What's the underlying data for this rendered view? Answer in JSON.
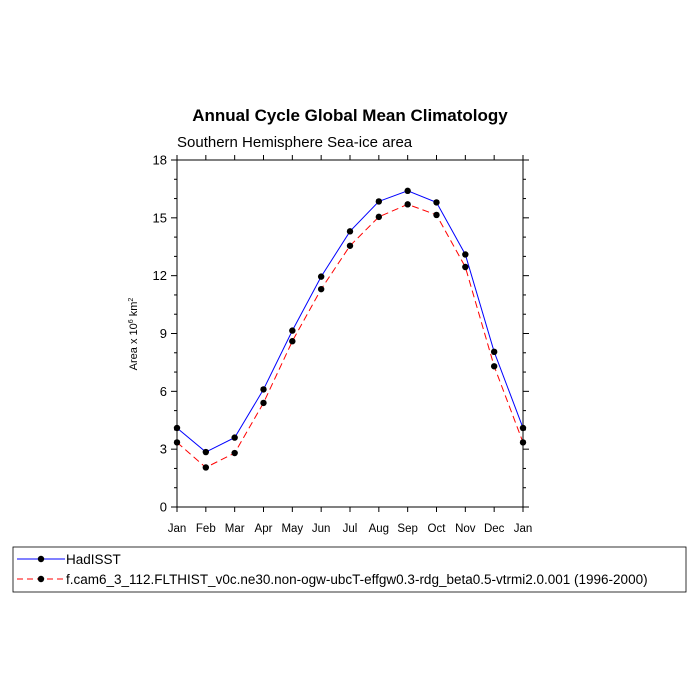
{
  "chart_data": {
    "type": "line",
    "title": "Annual Cycle Global Mean Climatology",
    "subtitle": "Southern Hemisphere Sea-ice area",
    "xlabel": "",
    "ylabel": "Area x 10",
    "ylabel_exponent": "6",
    "ylabel_unit": " km",
    "ylabel_unit_exponent": "2",
    "categories": [
      "Jan",
      "Feb",
      "Mar",
      "Apr",
      "May",
      "Jun",
      "Jul",
      "Aug",
      "Sep",
      "Oct",
      "Nov",
      "Dec",
      "Jan"
    ],
    "ylim": [
      0,
      18
    ],
    "yticks": [
      0,
      3,
      6,
      9,
      12,
      15,
      18
    ],
    "series": [
      {
        "name": "HadISST",
        "color": "#0000ff",
        "dash": "solid",
        "values": [
          4.1,
          2.85,
          3.6,
          6.1,
          9.15,
          11.95,
          14.3,
          15.85,
          16.4,
          15.8,
          13.1,
          8.05,
          4.1
        ]
      },
      {
        "name": "f.cam6_3_112.FLTHIST_v0c.ne30.non-ogw-ubcT-effgw0.3-rdg_beta0.5-vtrmi2.0.001 (1996-2000)",
        "color": "#ff0000",
        "dash": "dashed",
        "values": [
          3.35,
          2.05,
          2.8,
          5.4,
          8.6,
          11.3,
          13.55,
          15.05,
          15.7,
          15.15,
          12.45,
          7.3,
          3.35
        ]
      }
    ],
    "marker_color": "#000000",
    "legend_position": "bottom-left"
  }
}
